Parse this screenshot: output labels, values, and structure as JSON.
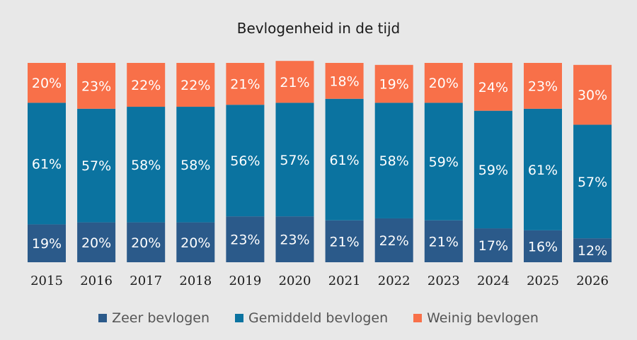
{
  "chart_data": {
    "type": "bar",
    "stacked": true,
    "percent": true,
    "title": "Bevlogenheid in de tijd",
    "xlabel": "",
    "ylabel": "",
    "categories": [
      "2015",
      "2016",
      "2017",
      "2018",
      "2019",
      "2020",
      "2021",
      "2022",
      "2023",
      "2024",
      "2025",
      "2026"
    ],
    "series": [
      {
        "name": "Zeer bevlogen",
        "color": "#2b5a8a",
        "values": [
          19,
          20,
          20,
          20,
          23,
          23,
          21,
          22,
          21,
          17,
          16,
          12
        ]
      },
      {
        "name": "Gemiddeld bevlogen",
        "color": "#0b73a0",
        "values": [
          61,
          57,
          58,
          58,
          56,
          57,
          61,
          58,
          59,
          59,
          61,
          57
        ]
      },
      {
        "name": "Weinig bevlogen",
        "color": "#f87049",
        "values": [
          20,
          23,
          22,
          22,
          21,
          21,
          18,
          19,
          20,
          24,
          23,
          30
        ]
      }
    ],
    "value_suffix": "%",
    "ylim": [
      0,
      100
    ],
    "grid": false,
    "legend_position": "bottom"
  }
}
